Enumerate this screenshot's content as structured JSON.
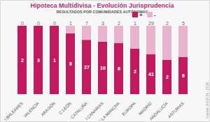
{
  "chart_data": {
    "type": "bar",
    "title": "Hipoteca Multidivisa - Evolución Jurisprudencia",
    "subtitle": "RESULTADOS POR COMUNIDADES AUTÓNOMAS",
    "caption": "Fuente: ASUFIN - 2016",
    "categories": [
      "I.BALEARES",
      "VALENCIA",
      "ARAGÓN",
      "C.LEÓN",
      "CATALUÑA",
      "I.CANARIAS",
      "C.LA MANCHA",
      "EUROPA",
      "MADRID",
      "ANDALUCÍA",
      "ASTURIAS"
    ],
    "series": [
      {
        "name": "+",
        "color": "#c2195f",
        "values": [
          2,
          3,
          1,
          8,
          27,
          10,
          6,
          2,
          41,
          2,
          6
        ]
      },
      {
        "name": "-",
        "color": "#e7b3cd",
        "values": [
          0,
          0,
          0,
          1,
          7,
          3,
          2,
          1,
          29,
          2,
          5
        ]
      }
    ],
    "stacked": true,
    "data_labels": true,
    "legend": "top-right",
    "tick_labels": "x"
  }
}
